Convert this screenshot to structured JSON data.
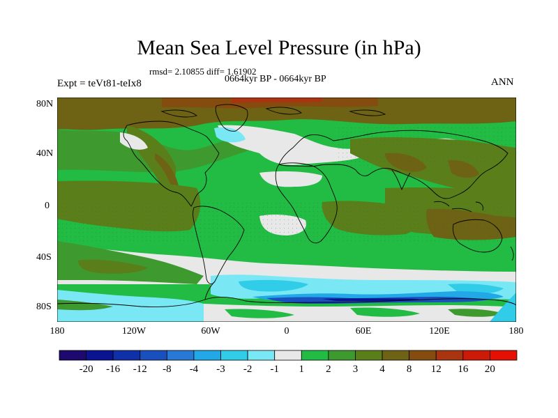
{
  "title": "Mean Sea Level Pressure (in hPa)",
  "subtitle_stats": "rmsd= 2.10855 diff= 1.61902",
  "subtitle_period": "0664kyr BP - 0664kyr BP",
  "left_label": "Expt = teVt81-teIx8",
  "right_label": "ANN",
  "lat_labels": [
    "80N",
    "40N",
    "0",
    "40S",
    "80S"
  ],
  "lon_labels": [
    "180",
    "120W",
    "60W",
    "0",
    "60E",
    "120E",
    "180"
  ],
  "colorbar": {
    "labels": [
      "-20",
      "-16",
      "-12",
      "-8",
      "-4",
      "-3",
      "-2",
      "-1",
      "1",
      "2",
      "3",
      "4",
      "8",
      "12",
      "16",
      "20"
    ],
    "colors": [
      "#1e0a6e",
      "#0a1490",
      "#1030a8",
      "#1a50be",
      "#2a78d6",
      "#22a8e6",
      "#30cce8",
      "#7ae8f4",
      "#e8e8e8",
      "#22bb44",
      "#3e9a2e",
      "#5a7e1a",
      "#6e6214",
      "#844c0e",
      "#a83410",
      "#cc1a08",
      "#e41004"
    ]
  },
  "chart_data": {
    "type": "heatmap",
    "title": "Mean Sea Level Pressure (in hPa)",
    "variable": "Mean Sea Level Pressure difference",
    "units": "hPa",
    "x_range": [
      -180,
      180
    ],
    "y_range": [
      -90,
      90
    ],
    "contour_levels": [
      -20,
      -16,
      -12,
      -8,
      -4,
      -3,
      -2,
      -1,
      1,
      2,
      3,
      4,
      8,
      12,
      16,
      20
    ],
    "rmsd": 2.10855,
    "diff": 1.61902
  }
}
